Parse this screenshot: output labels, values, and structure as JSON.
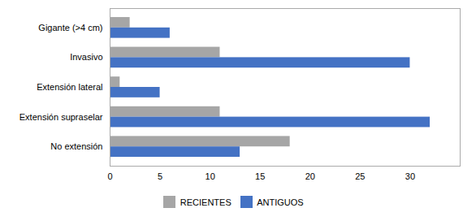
{
  "chart_data": {
    "type": "bar",
    "orientation": "horizontal",
    "categories": [
      "No extensión",
      "Extensión supraselar",
      "Extensión lateral",
      "Invasivo",
      "Gigante (>4 cm)"
    ],
    "series": [
      {
        "name": "RECIENTES",
        "color": "#a6a6a6",
        "values": [
          18,
          11,
          1,
          11,
          2
        ]
      },
      {
        "name": "ANTIGUOS",
        "color": "#4472c4",
        "values": [
          13,
          32,
          5,
          30,
          6
        ]
      }
    ],
    "xlim": [
      0,
      35
    ],
    "xticks": [
      0,
      5,
      10,
      15,
      20,
      25,
      30
    ],
    "grid": false,
    "legend": "bottom"
  }
}
